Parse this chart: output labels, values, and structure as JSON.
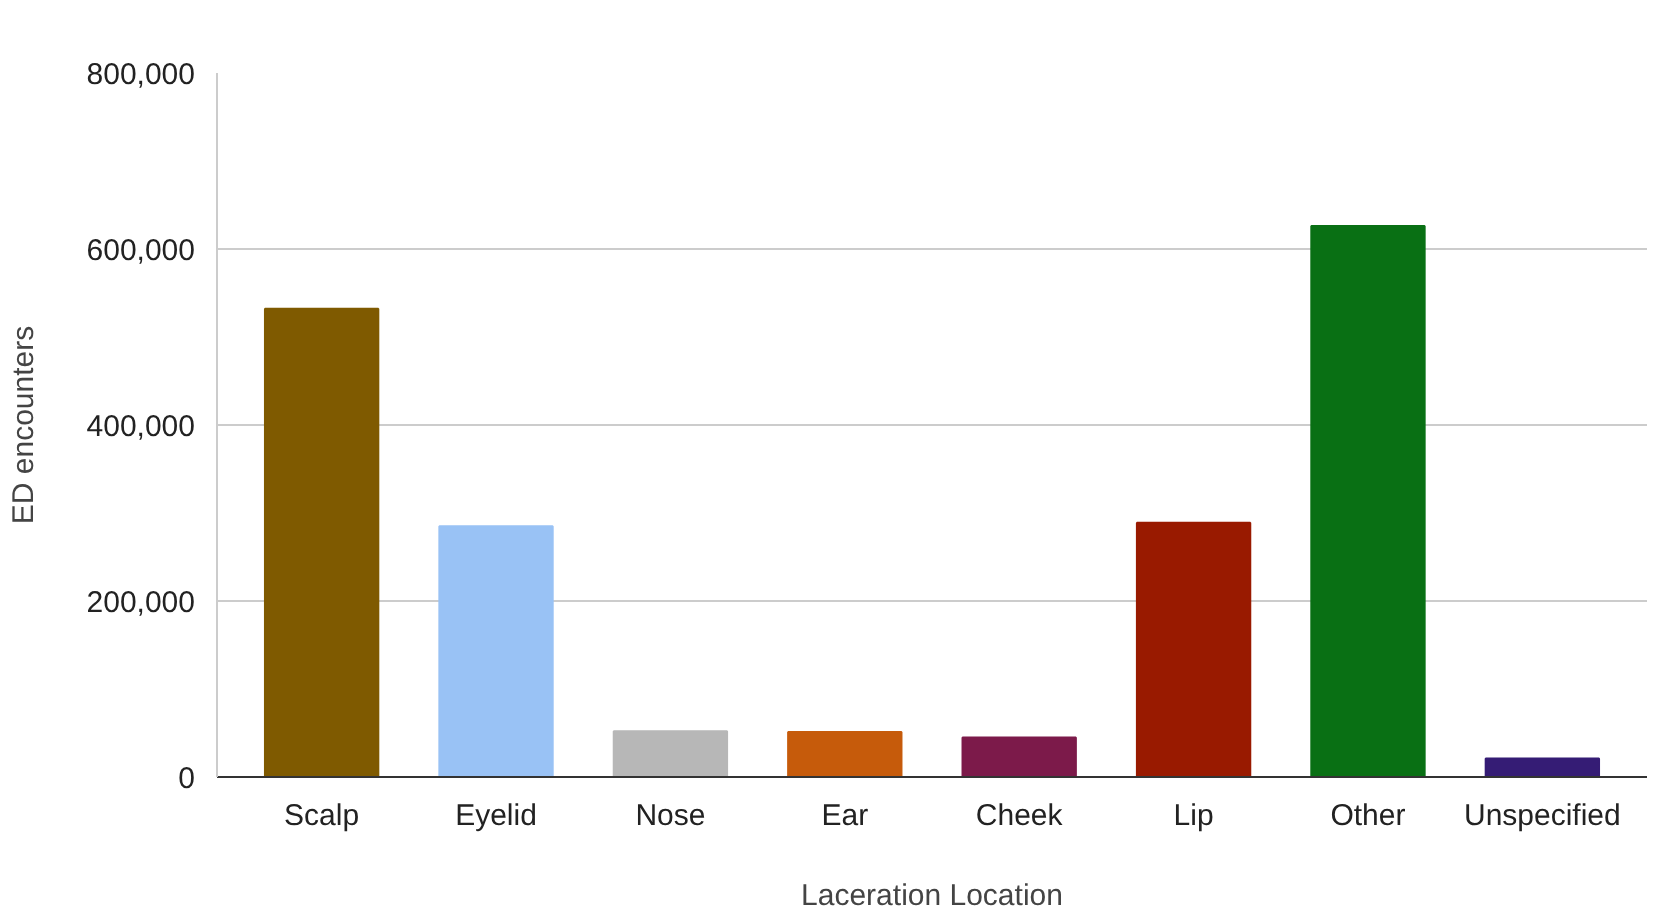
{
  "chart_data": {
    "type": "bar",
    "xlabel": "Laceration Location",
    "ylabel": "ED encounters",
    "categories": [
      "Scalp",
      "Eyelid",
      "Nose",
      "Ear",
      "Cheek",
      "Lip",
      "Other",
      "Unspecified"
    ],
    "values": [
      532000,
      285000,
      52000,
      51000,
      45000,
      289000,
      626000,
      21000
    ],
    "colors": [
      "#7f5a00",
      "#99c2f5",
      "#b7b7b7",
      "#c65b0b",
      "#7c1a4a",
      "#991a00",
      "#097014",
      "#351c75"
    ],
    "ylim": [
      0,
      800000
    ],
    "yticks": [
      {
        "value": 0,
        "label": "0"
      },
      {
        "value": 200000,
        "label": "200,000"
      },
      {
        "value": 400000,
        "label": "400,000"
      },
      {
        "value": 600000,
        "label": "600,000"
      },
      {
        "value": 800000,
        "label": "800,000"
      }
    ],
    "grid": "y"
  }
}
